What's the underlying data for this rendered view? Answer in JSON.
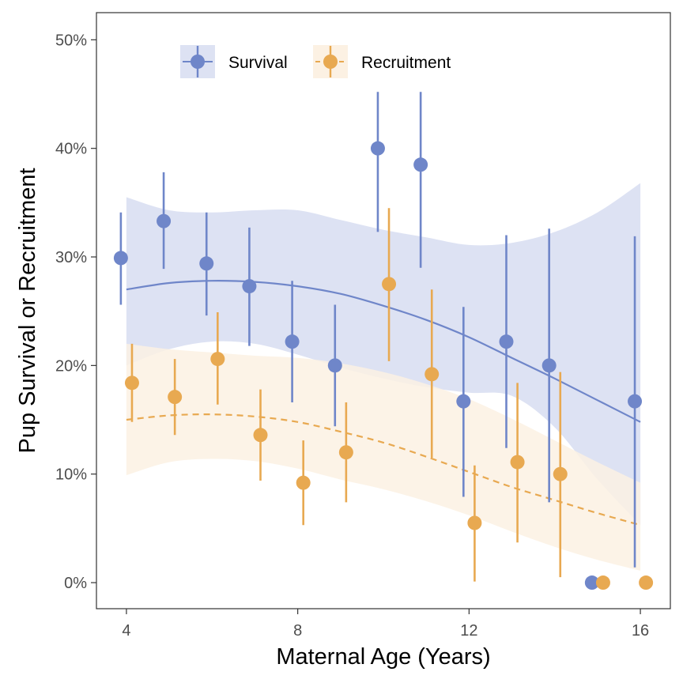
{
  "chart_data": {
    "type": "scatter",
    "xlabel": "Maternal Age (Years)",
    "ylabel": "Pup Survival or Recruitment",
    "xlim": [
      3.3,
      16.7
    ],
    "ylim": [
      -2.4,
      52.5
    ],
    "x_ticks": [
      4,
      8,
      12,
      16
    ],
    "x_tick_labels": [
      "4",
      "8",
      "12",
      "16"
    ],
    "y_ticks": [
      0,
      10,
      20,
      30,
      40,
      50
    ],
    "y_tick_labels": [
      "0%",
      "10%",
      "20%",
      "30%",
      "40%",
      "50%"
    ],
    "grid": false,
    "legend_position": "top-left",
    "series": [
      {
        "name": "Survival",
        "color": "#6f86c9",
        "band_color": "#dde2f3",
        "line_style": "solid",
        "points": [
          {
            "x": 4,
            "y": 29.9,
            "lo": 25.6,
            "hi": 34.1
          },
          {
            "x": 5,
            "y": 33.3,
            "lo": 28.9,
            "hi": 37.8
          },
          {
            "x": 6,
            "y": 29.4,
            "lo": 24.6,
            "hi": 34.1
          },
          {
            "x": 7,
            "y": 27.3,
            "lo": 21.8,
            "hi": 32.7
          },
          {
            "x": 8,
            "y": 22.2,
            "lo": 16.6,
            "hi": 27.8
          },
          {
            "x": 9,
            "y": 20.0,
            "lo": 14.4,
            "hi": 25.6
          },
          {
            "x": 10,
            "y": 40.0,
            "lo": 32.3,
            "hi": 45.2
          },
          {
            "x": 11,
            "y": 38.5,
            "lo": 29.0,
            "hi": 45.2
          },
          {
            "x": 12,
            "y": 16.7,
            "lo": 7.9,
            "hi": 25.4
          },
          {
            "x": 13,
            "y": 22.2,
            "lo": 12.4,
            "hi": 32.0
          },
          {
            "x": 14,
            "y": 20.0,
            "lo": 7.4,
            "hi": 32.6
          },
          {
            "x": 15,
            "y": 0.0,
            "lo": 0.0,
            "hi": 0.0
          },
          {
            "x": 16,
            "y": 16.7,
            "lo": 1.4,
            "hi": 31.9
          }
        ],
        "fit": [
          {
            "x": 4,
            "y": 27.0,
            "lo": 20.0,
            "hi": 35.5
          },
          {
            "x": 5,
            "y": 27.6,
            "lo": 21.5,
            "hi": 34.3
          },
          {
            "x": 6,
            "y": 27.8,
            "lo": 22.2,
            "hi": 34.1
          },
          {
            "x": 7,
            "y": 27.7,
            "lo": 22.0,
            "hi": 34.3
          },
          {
            "x": 8,
            "y": 27.3,
            "lo": 21.0,
            "hi": 34.3
          },
          {
            "x": 9,
            "y": 26.6,
            "lo": 19.8,
            "hi": 33.4
          },
          {
            "x": 10,
            "y": 25.5,
            "lo": 18.8,
            "hi": 32.5
          },
          {
            "x": 11,
            "y": 24.2,
            "lo": 18.0,
            "hi": 31.8
          },
          {
            "x": 12,
            "y": 22.6,
            "lo": 17.5,
            "hi": 31.1
          },
          {
            "x": 13,
            "y": 20.7,
            "lo": 17.2,
            "hi": 31.3
          },
          {
            "x": 14,
            "y": 18.8,
            "lo": 14.3,
            "hi": 32.3
          },
          {
            "x": 15,
            "y": 16.8,
            "lo": 9.5,
            "hi": 34.1
          },
          {
            "x": 16,
            "y": 14.8,
            "lo": 5.3,
            "hi": 36.8
          }
        ]
      },
      {
        "name": "Recruitment",
        "color": "#e8a951",
        "band_color": "#fcf1e3",
        "line_style": "dashed",
        "points": [
          {
            "x": 4,
            "y": 18.4,
            "lo": 14.8,
            "hi": 22.0
          },
          {
            "x": 5,
            "y": 17.1,
            "lo": 13.6,
            "hi": 20.6
          },
          {
            "x": 6,
            "y": 20.6,
            "lo": 16.4,
            "hi": 24.9
          },
          {
            "x": 7,
            "y": 13.6,
            "lo": 9.4,
            "hi": 17.8
          },
          {
            "x": 8,
            "y": 9.2,
            "lo": 5.3,
            "hi": 13.1
          },
          {
            "x": 9,
            "y": 12.0,
            "lo": 7.4,
            "hi": 16.6
          },
          {
            "x": 10,
            "y": 27.5,
            "lo": 20.4,
            "hi": 34.5
          },
          {
            "x": 11,
            "y": 19.2,
            "lo": 11.5,
            "hi": 27.0
          },
          {
            "x": 12,
            "y": 5.5,
            "lo": 0.1,
            "hi": 10.8
          },
          {
            "x": 13,
            "y": 11.1,
            "lo": 3.7,
            "hi": 18.4
          },
          {
            "x": 14,
            "y": 10.0,
            "lo": 0.5,
            "hi": 19.4
          },
          {
            "x": 15,
            "y": 0.0,
            "lo": 0.0,
            "hi": 0.0
          },
          {
            "x": 16,
            "y": 0.0,
            "lo": 0.0,
            "hi": 0.0
          }
        ],
        "fit": [
          {
            "x": 4,
            "y": 15.0,
            "lo": 9.9,
            "hi": 22.0
          },
          {
            "x": 5,
            "y": 15.4,
            "lo": 11.1,
            "hi": 21.5
          },
          {
            "x": 6,
            "y": 15.5,
            "lo": 11.4,
            "hi": 21.2
          },
          {
            "x": 7,
            "y": 15.3,
            "lo": 11.2,
            "hi": 20.9
          },
          {
            "x": 8,
            "y": 14.8,
            "lo": 10.5,
            "hi": 20.7
          },
          {
            "x": 9,
            "y": 13.9,
            "lo": 9.5,
            "hi": 20.2
          },
          {
            "x": 10,
            "y": 12.9,
            "lo": 8.6,
            "hi": 19.4
          },
          {
            "x": 11,
            "y": 11.6,
            "lo": 7.5,
            "hi": 18.3
          },
          {
            "x": 12,
            "y": 10.2,
            "lo": 6.2,
            "hi": 16.9
          },
          {
            "x": 13,
            "y": 8.8,
            "lo": 4.7,
            "hi": 15.1
          },
          {
            "x": 14,
            "y": 7.6,
            "lo": 3.3,
            "hi": 13.1
          },
          {
            "x": 15,
            "y": 6.4,
            "lo": 2.1,
            "hi": 11.1
          },
          {
            "x": 16,
            "y": 5.3,
            "lo": 1.1,
            "hi": 9.2
          }
        ]
      }
    ]
  }
}
